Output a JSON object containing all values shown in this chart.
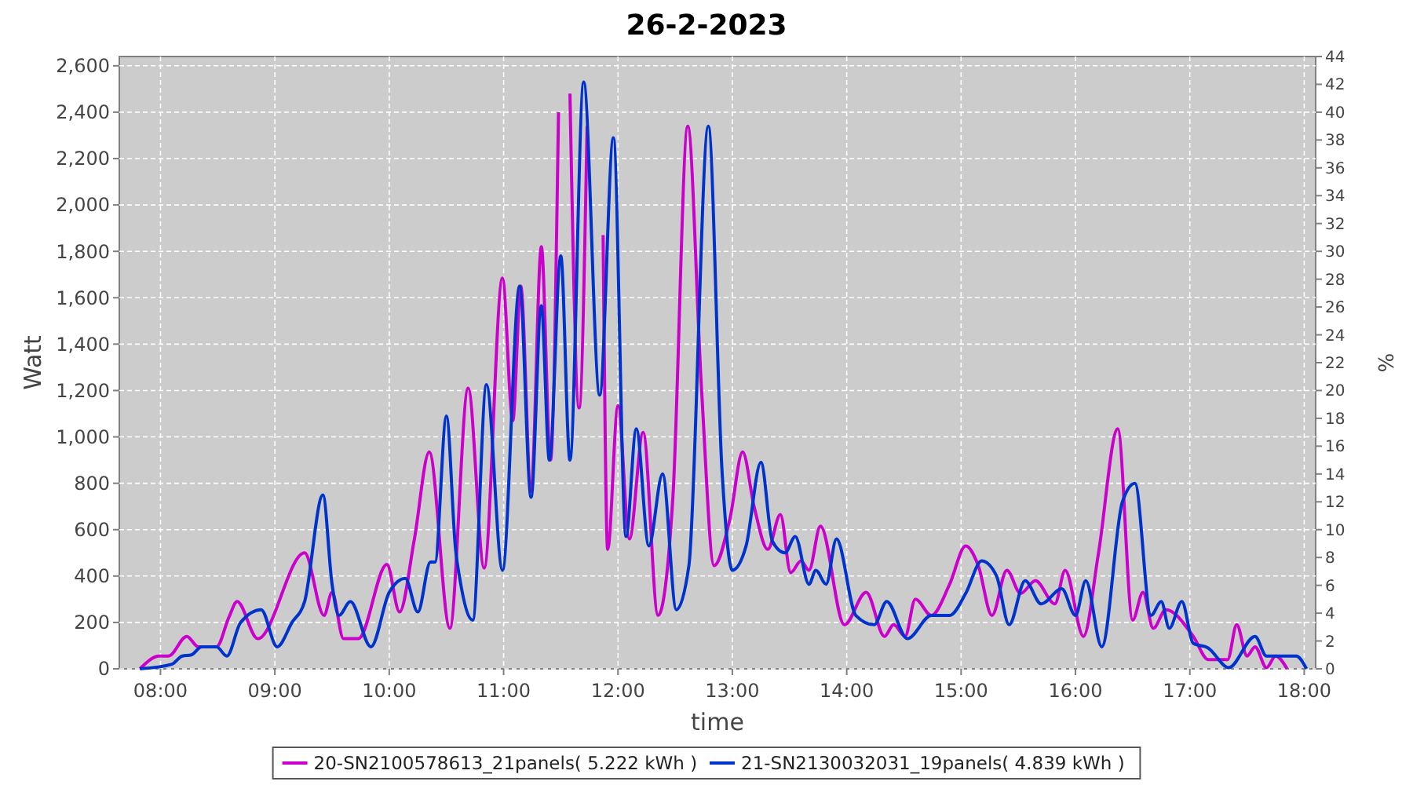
{
  "chart_data": {
    "type": "line",
    "title": "26-2-2023",
    "xlabel": "time",
    "ylabel": "Watt",
    "y2label": "%",
    "xlim": [
      7.64,
      18.1
    ],
    "xticks": [
      {
        "value": 8,
        "label": "08:00"
      },
      {
        "value": 9,
        "label": "09:00"
      },
      {
        "value": 10,
        "label": "10:00"
      },
      {
        "value": 11,
        "label": "11:00"
      },
      {
        "value": 12,
        "label": "12:00"
      },
      {
        "value": 13,
        "label": "13:00"
      },
      {
        "value": 14,
        "label": "14:00"
      },
      {
        "value": 15,
        "label": "15:00"
      },
      {
        "value": 16,
        "label": "16:00"
      },
      {
        "value": 17,
        "label": "17:00"
      },
      {
        "value": 18,
        "label": "18:00"
      }
    ],
    "ylim": [
      0,
      2640
    ],
    "yticks": [
      0,
      200,
      400,
      600,
      800,
      {
        "value": 1000,
        "label": "1,000"
      },
      {
        "value": 1200,
        "label": "1,200"
      },
      {
        "value": 1400,
        "label": "1,400"
      },
      {
        "value": 1600,
        "label": "1,600"
      },
      {
        "value": 1800,
        "label": "1,800"
      },
      {
        "value": 2000,
        "label": "2,000"
      },
      {
        "value": 2200,
        "label": "2,200"
      },
      {
        "value": 2400,
        "label": "2,400"
      },
      {
        "value": 2600,
        "label": "2,600"
      }
    ],
    "y2lim": [
      0,
      44
    ],
    "y2ticks": [
      0,
      2,
      4,
      6,
      8,
      10,
      12,
      14,
      16,
      18,
      20,
      22,
      24,
      26,
      28,
      30,
      32,
      34,
      36,
      38,
      40,
      42,
      44
    ],
    "grid": true,
    "legend": "bottom",
    "series": [
      {
        "name": "20-SN2100578613_21panels( 5.222 kWh )",
        "color": "#cc00cc",
        "x": [
          7.82,
          7.99,
          8.07,
          8.23,
          8.33,
          8.49,
          8.6,
          8.67,
          8.85,
          9.26,
          9.43,
          9.5,
          9.6,
          9.73,
          9.98,
          10.09,
          10.22,
          10.35,
          10.53,
          10.69,
          10.83,
          10.99,
          11.08,
          11.15,
          11.24,
          11.33,
          11.41,
          11.48,
          11.53,
          11.58,
          11.66,
          11.73,
          11.8,
          11.87,
          11.91,
          12.0,
          12.1,
          12.22,
          12.35,
          12.48,
          12.61,
          12.73,
          12.84,
          12.98,
          13.09,
          13.19,
          13.31,
          13.42,
          13.51,
          13.6,
          13.67,
          13.77,
          13.98,
          14.17,
          14.33,
          14.41,
          14.51,
          14.6,
          14.74,
          14.9,
          15.04,
          15.15,
          15.27,
          15.4,
          15.52,
          15.65,
          15.82,
          15.91,
          16.07,
          16.2,
          16.37,
          16.5,
          16.59,
          16.68,
          16.79,
          17.03,
          17.16,
          17.33,
          17.41,
          17.5,
          17.57,
          17.67,
          17.75,
          17.85
        ],
        "values": [
          0,
          55,
          55,
          140,
          95,
          95,
          225,
          290,
          130,
          500,
          230,
          330,
          130,
          130,
          450,
          245,
          560,
          935,
          175,
          1210,
          435,
          1685,
          1070,
          1650,
          765,
          1820,
          900,
          2400,
          null,
          2480,
          1125,
          2340,
          null,
          1870,
          515,
          1135,
          560,
          1020,
          230,
          740,
          2340,
          1210,
          445,
          650,
          935,
          700,
          515,
          665,
          415,
          465,
          425,
          615,
          190,
          330,
          140,
          190,
          140,
          300,
          230,
          365,
          530,
          445,
          230,
          425,
          325,
          380,
          280,
          425,
          140,
          495,
          1035,
          210,
          330,
          175,
          255,
          140,
          40,
          40,
          190,
          55,
          95,
          5,
          55,
          0
        ]
      },
      {
        "name": "21-SN2130032031_19panels( 4.839 kWh )",
        "color": "#0033cc",
        "x": [
          7.82,
          8.1,
          8.19,
          8.27,
          8.36,
          8.49,
          8.58,
          8.7,
          8.88,
          9.02,
          9.15,
          9.26,
          9.42,
          9.5,
          9.56,
          9.66,
          9.84,
          10.0,
          10.14,
          10.25,
          10.36,
          10.4,
          10.5,
          10.58,
          10.62,
          10.73,
          10.85,
          10.99,
          11.14,
          11.24,
          11.33,
          11.4,
          11.5,
          11.58,
          11.7,
          11.84,
          11.96,
          12.07,
          12.16,
          12.27,
          12.39,
          12.51,
          12.62,
          12.79,
          12.91,
          13.0,
          13.12,
          13.25,
          13.35,
          13.46,
          13.55,
          13.67,
          13.73,
          13.82,
          13.91,
          14.08,
          14.24,
          14.35,
          14.53,
          14.74,
          14.9,
          15.04,
          15.18,
          15.31,
          15.42,
          15.56,
          15.7,
          15.88,
          16.0,
          16.09,
          16.23,
          16.41,
          16.52,
          16.66,
          16.75,
          16.82,
          16.93,
          17.03,
          17.16,
          17.34,
          17.57,
          17.67,
          17.81,
          17.93,
          18.02
        ],
        "values": [
          0,
          20,
          55,
          60,
          95,
          95,
          55,
          200,
          255,
          95,
          200,
          290,
          750,
          365,
          230,
          290,
          95,
          330,
          390,
          245,
          460,
          460,
          1090,
          515,
          380,
          210,
          1225,
          425,
          1650,
          740,
          1565,
          900,
          1780,
          900,
          2530,
          1180,
          2290,
          570,
          1035,
          530,
          840,
          255,
          445,
          2340,
          850,
          425,
          530,
          890,
          550,
          500,
          570,
          365,
          425,
          365,
          560,
          230,
          190,
          290,
          130,
          230,
          230,
          325,
          465,
          400,
          190,
          380,
          280,
          345,
          230,
          380,
          95,
          720,
          800,
          230,
          290,
          175,
          290,
          110,
          90,
          5,
          140,
          55,
          55,
          55,
          0
        ]
      }
    ]
  }
}
